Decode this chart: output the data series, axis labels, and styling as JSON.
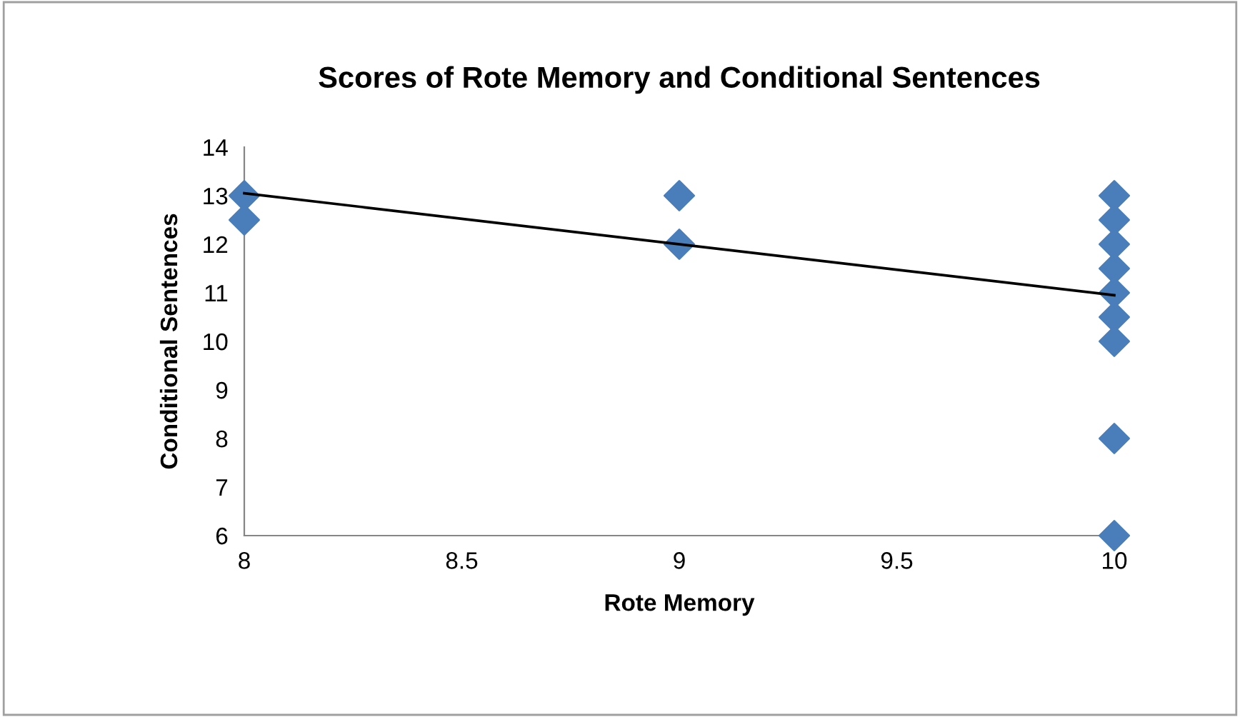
{
  "chart_data": {
    "type": "scatter",
    "title": "Scores of Rote Memory and Conditional Sentences",
    "xlabel": "Rote Memory",
    "ylabel": "Conditional Sentences",
    "series": [
      {
        "color": "#4a7ebb",
        "marker": "diamond",
        "x": [
          8,
          8,
          9,
          9,
          10,
          10,
          10,
          10,
          10,
          10,
          10,
          10,
          10
        ],
        "values": [
          13,
          12.5,
          13,
          12,
          13,
          12.5,
          12,
          11.5,
          11,
          10.5,
          10,
          8,
          6
        ]
      },
      {
        "type": "line",
        "color": "#000000",
        "marker": "none",
        "x": [
          8,
          10
        ],
        "values": [
          13.05,
          10.95
        ]
      }
    ],
    "xlim": [
      8,
      10
    ],
    "xticks": [
      8,
      8.5,
      9,
      9.5,
      10
    ],
    "ylim": [
      6,
      14
    ],
    "yticks": [
      6,
      7,
      8,
      9,
      10,
      11,
      12,
      13,
      14
    ],
    "grid": false,
    "legend": false
  }
}
